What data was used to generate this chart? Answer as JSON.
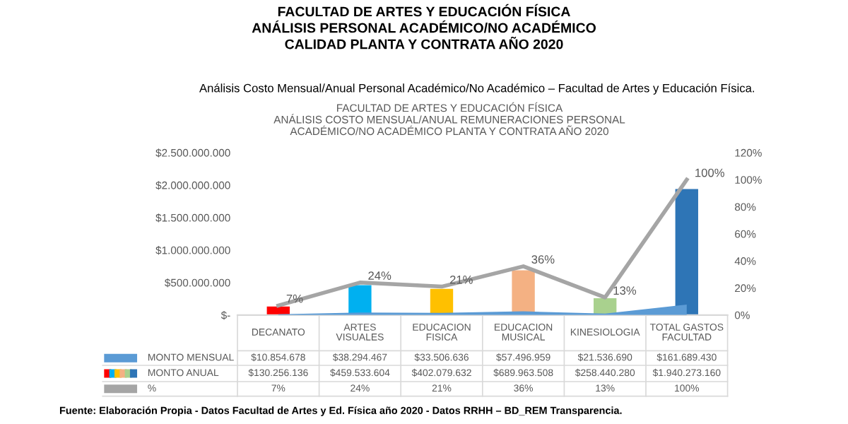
{
  "chart_data": {
    "type": "bar",
    "title": "FACULTAD DE ARTES Y EDUCACIÓN FÍSICA\nANÁLISIS PERSONAL ACADÉMICO/NO ACADÉMICO\nCALIDAD PLANTA Y CONTRATA AÑO 2020",
    "subtitle": "Análisis Costo Mensual/Anual Personal Académico/No Académico – Facultad de Artes y Educación Física.",
    "annotations": [
      "FACULTAD DE ARTES Y EDUCACIÓN FÍSICA\nANÁLISIS COSTO MENSUAL/ANUAL REMUNERACIONES PERSONAL\nACADÉMICO/NO ACADÉMICO PLANTA Y CONTRATA AÑO 2020",
      "Fuente: Elaboración Propia - Datos Facultad de Artes y Ed. Física año 2020 - Datos RRHH – BD_REM Transparencia."
    ],
    "categories": [
      "DECANATO",
      "ARTES VISUALES",
      "EDUCACION FISICA",
      "EDUCACION MUSICAL",
      "KINESIOLOGIA",
      "TOTAL GASTOS FACULTAD"
    ],
    "series": [
      {
        "name": "MONTO MENSUAL",
        "type": "area",
        "color": "#5b9bd5",
        "values": [
          10854678,
          38294467,
          33506636,
          57496959,
          21536690,
          161689430
        ],
        "value_labels": [
          "$10.854.678",
          "$38.294.467",
          "$33.506.636",
          "$57.496.959",
          "$21.536.690",
          "$161.689.430"
        ]
      },
      {
        "name": "MONTO ANUAL",
        "colors": [
          "#ff0000",
          "#00b0f0",
          "#ffc000",
          "#f4b183",
          "#a9d18e",
          "#2e75b6"
        ],
        "values": [
          130256136,
          459533604,
          402079632,
          689963508,
          258440280,
          1940273160
        ],
        "value_labels": [
          "$130.256.136",
          "$459.533.604",
          "$402.079.632",
          "$689.963.508",
          "$258.440.280",
          "$1.940.273.160"
        ]
      },
      {
        "name": "%",
        "type": "line",
        "axis": "y2",
        "color": "#a5a5a5",
        "values": [
          7,
          24,
          21,
          36,
          13,
          100
        ],
        "value_labels": [
          "7%",
          "24%",
          "21%",
          "36%",
          "13%",
          "100%"
        ]
      }
    ],
    "ylim": [
      0,
      2500000000
    ],
    "yticks": [
      {
        "value": 0,
        "label": "$-"
      },
      {
        "value": 500000000,
        "label": "$500.000.000"
      },
      {
        "value": 1000000000,
        "label": "$1.000.000.000"
      },
      {
        "value": 1500000000,
        "label": "$1.500.000.000"
      },
      {
        "value": 2000000000,
        "label": "$2.000.000.000"
      },
      {
        "value": 2500000000,
        "label": "$2.500.000.000"
      }
    ],
    "y2lim": [
      0,
      120
    ],
    "y2ticks": [
      {
        "value": 0,
        "label": "0%"
      },
      {
        "value": 20,
        "label": "20%"
      },
      {
        "value": 40,
        "label": "40%"
      },
      {
        "value": 60,
        "label": "60%"
      },
      {
        "value": 80,
        "label": "80%"
      },
      {
        "value": 100,
        "label": "100%"
      },
      {
        "value": 120,
        "label": "120%"
      }
    ],
    "legend": "bottom",
    "grid": false
  }
}
